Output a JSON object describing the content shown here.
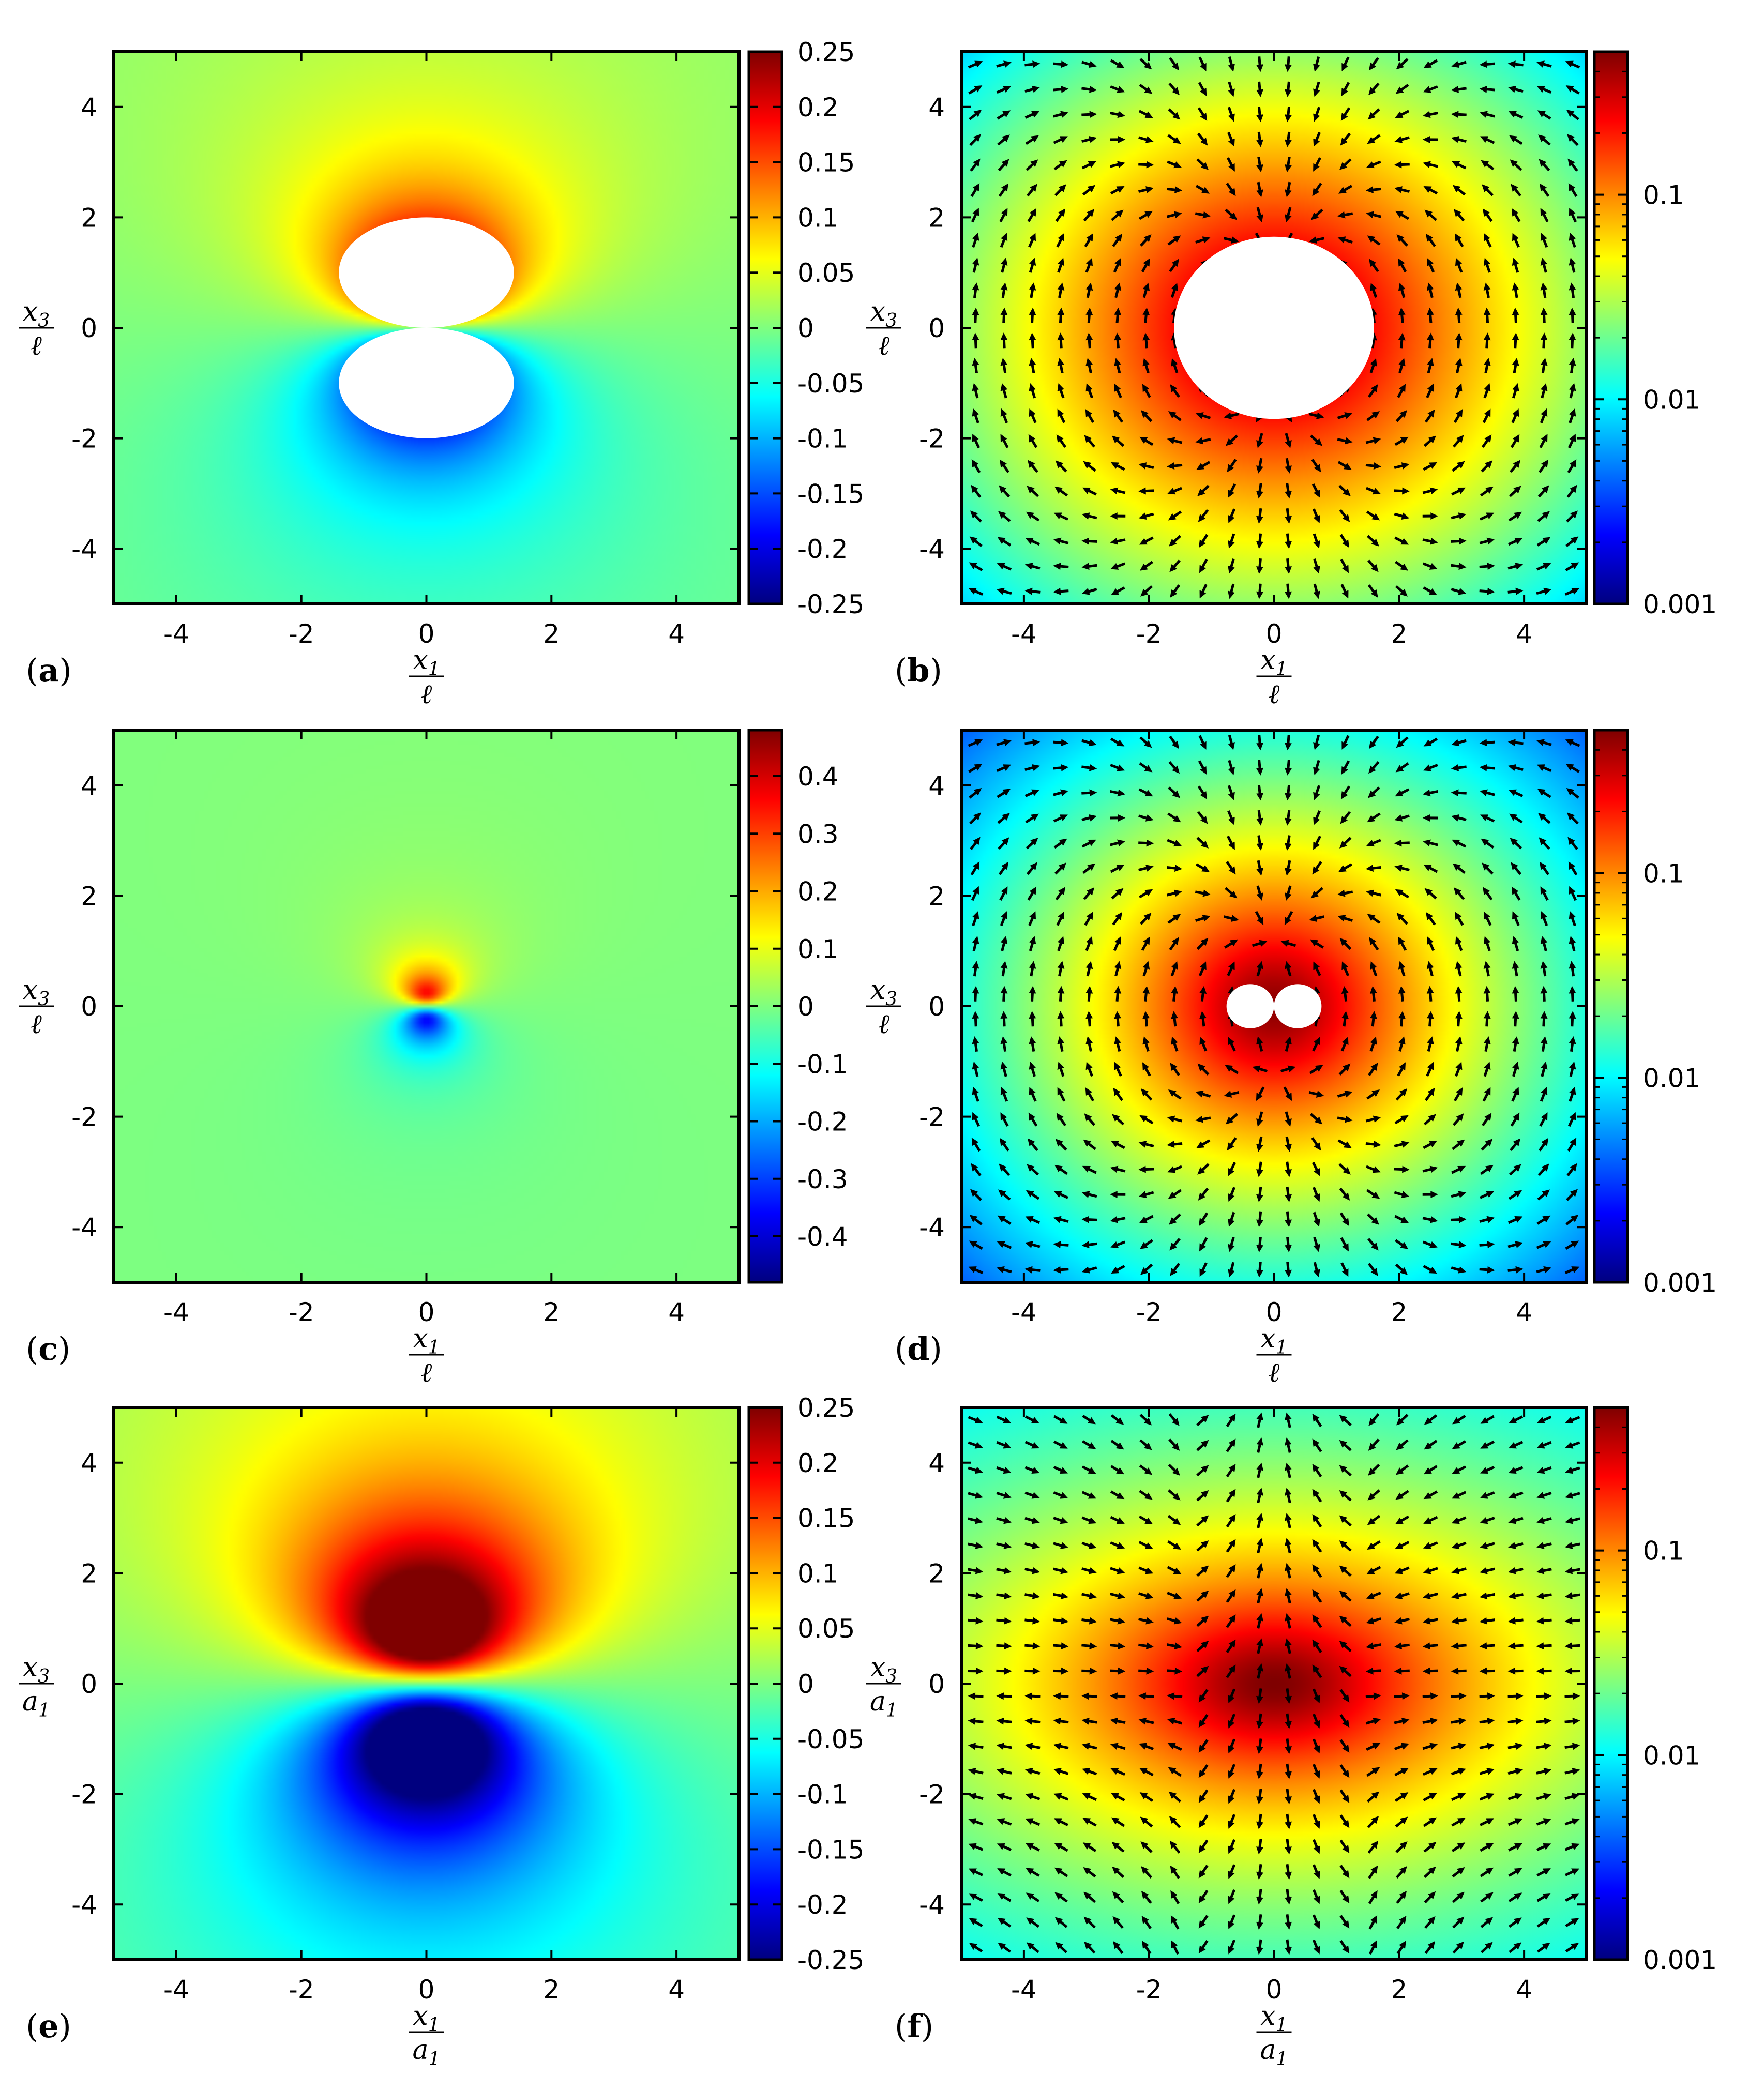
{
  "colors": {
    "jet": [
      "#00007f",
      "#0000ff",
      "#007fff",
      "#00ffff",
      "#7fff7f",
      "#ffff00",
      "#ff7f00",
      "#ff0000",
      "#7f0000"
    ],
    "arrow": "#000000",
    "hole": "#ffffff",
    "frame": "#000000"
  },
  "labels": {
    "xlabel_l": {
      "num": "x",
      "num_sub": "1",
      "den": "ℓ",
      "den_sub": ""
    },
    "ylabel_l": {
      "num": "x",
      "num_sub": "3",
      "den": "ℓ",
      "den_sub": ""
    },
    "xlabel_a": {
      "num": "x",
      "num_sub": "1",
      "den": "a",
      "den_sub": "1"
    },
    "ylabel_a": {
      "num": "x",
      "num_sub": "3",
      "den": "a",
      "den_sub": "1"
    }
  },
  "chart_data": [
    {
      "id": "a",
      "tag": "a",
      "type": "heatmap",
      "field": "dipole",
      "scale": 1.2,
      "label_set": "l",
      "xlim": [
        -5,
        5
      ],
      "ylim": [
        -5,
        5
      ],
      "x_ticks": [
        "-4",
        "-2",
        "0",
        "2",
        "4"
      ],
      "y_ticks": [
        "-4",
        "-2",
        "0",
        "2",
        "4"
      ],
      "colorbar": {
        "scale": "linear",
        "range": [
          -0.25,
          0.25
        ],
        "ticks": [
          "-0.25",
          "-0.2",
          "-0.15",
          "-0.1",
          "-0.05",
          "0",
          "0.05",
          "0.1",
          "0.15",
          "0.2",
          "0.25"
        ]
      },
      "holes": [
        {
          "cx": 0,
          "cy": 1.0,
          "rx": 1.4,
          "ry": 1.0
        },
        {
          "cx": 0,
          "cy": -1.0,
          "rx": 1.4,
          "ry": 1.0
        }
      ]
    },
    {
      "id": "b",
      "tag": "b",
      "type": "heatmap",
      "field": "magnitude",
      "scale": 1.6,
      "quiver": "swirl",
      "label_set": "l",
      "xlim": [
        -5,
        5
      ],
      "ylim": [
        -5,
        5
      ],
      "x_ticks": [
        "-4",
        "-2",
        "0",
        "2",
        "4"
      ],
      "y_ticks": [
        "-4",
        "-2",
        "0",
        "2",
        "4"
      ],
      "colorbar": {
        "scale": "log",
        "range": [
          0.001,
          0.5
        ],
        "ticks": [
          "0.001",
          "0.01",
          "0.1"
        ]
      },
      "holes": [
        {
          "cx": 0,
          "cy": 0,
          "rx": 1.6,
          "ry": 1.65
        }
      ]
    },
    {
      "id": "c",
      "tag": "c",
      "type": "heatmap",
      "field": "dipole",
      "scale": 0.45,
      "label_set": "l",
      "xlim": [
        -5,
        5
      ],
      "ylim": [
        -5,
        5
      ],
      "x_ticks": [
        "-4",
        "-2",
        "0",
        "2",
        "4"
      ],
      "y_ticks": [
        "-4",
        "-2",
        "0",
        "2",
        "4"
      ],
      "colorbar": {
        "scale": "linear",
        "range": [
          -0.48,
          0.48
        ],
        "ticks": [
          "-0.4",
          "-0.3",
          "-0.2",
          "-0.1",
          "0",
          "0.1",
          "0.2",
          "0.3",
          "0.4"
        ]
      },
      "holes": []
    },
    {
      "id": "d",
      "tag": "d",
      "type": "heatmap",
      "field": "magnitude",
      "scale": 1.1,
      "quiver": "swirl",
      "label_set": "l",
      "xlim": [
        -5,
        5
      ],
      "ylim": [
        -5,
        5
      ],
      "x_ticks": [
        "-4",
        "-2",
        "0",
        "2",
        "4"
      ],
      "y_ticks": [
        "-4",
        "-2",
        "0",
        "2",
        "4"
      ],
      "colorbar": {
        "scale": "log",
        "range": [
          0.001,
          0.5
        ],
        "ticks": [
          "0.001",
          "0.01",
          "0.1"
        ]
      },
      "holes": [
        {
          "cx": -0.38,
          "cy": 0,
          "rx": 0.38,
          "ry": 0.4
        },
        {
          "cx": 0.38,
          "cy": 0,
          "rx": 0.38,
          "ry": 0.4
        }
      ]
    },
    {
      "id": "e",
      "tag": "e",
      "type": "heatmap",
      "field": "dipole",
      "scale": 1.8,
      "label_set": "a",
      "xlim": [
        -5,
        5
      ],
      "ylim": [
        -5,
        5
      ],
      "x_ticks": [
        "-4",
        "-2",
        "0",
        "2",
        "4"
      ],
      "y_ticks": [
        "-4",
        "-2",
        "0",
        "2",
        "4"
      ],
      "colorbar": {
        "scale": "linear",
        "range": [
          -0.25,
          0.25
        ],
        "ticks": [
          "-0.25",
          "-0.2",
          "-0.15",
          "-0.1",
          "-0.05",
          "0",
          "0.05",
          "0.1",
          "0.15",
          "0.2",
          "0.25"
        ]
      },
      "holes": []
    },
    {
      "id": "f",
      "tag": "f",
      "type": "heatmap",
      "field": "magnitude",
      "scale": 1.3,
      "quiver": "saddle",
      "label_set": "a",
      "xlim": [
        -5,
        5
      ],
      "ylim": [
        -5,
        5
      ],
      "x_ticks": [
        "-4",
        "-2",
        "0",
        "2",
        "4"
      ],
      "y_ticks": [
        "-4",
        "-2",
        "0",
        "2",
        "4"
      ],
      "colorbar": {
        "scale": "log",
        "range": [
          0.001,
          0.5
        ],
        "ticks": [
          "0.001",
          "0.01",
          "0.1"
        ]
      },
      "holes": []
    }
  ]
}
